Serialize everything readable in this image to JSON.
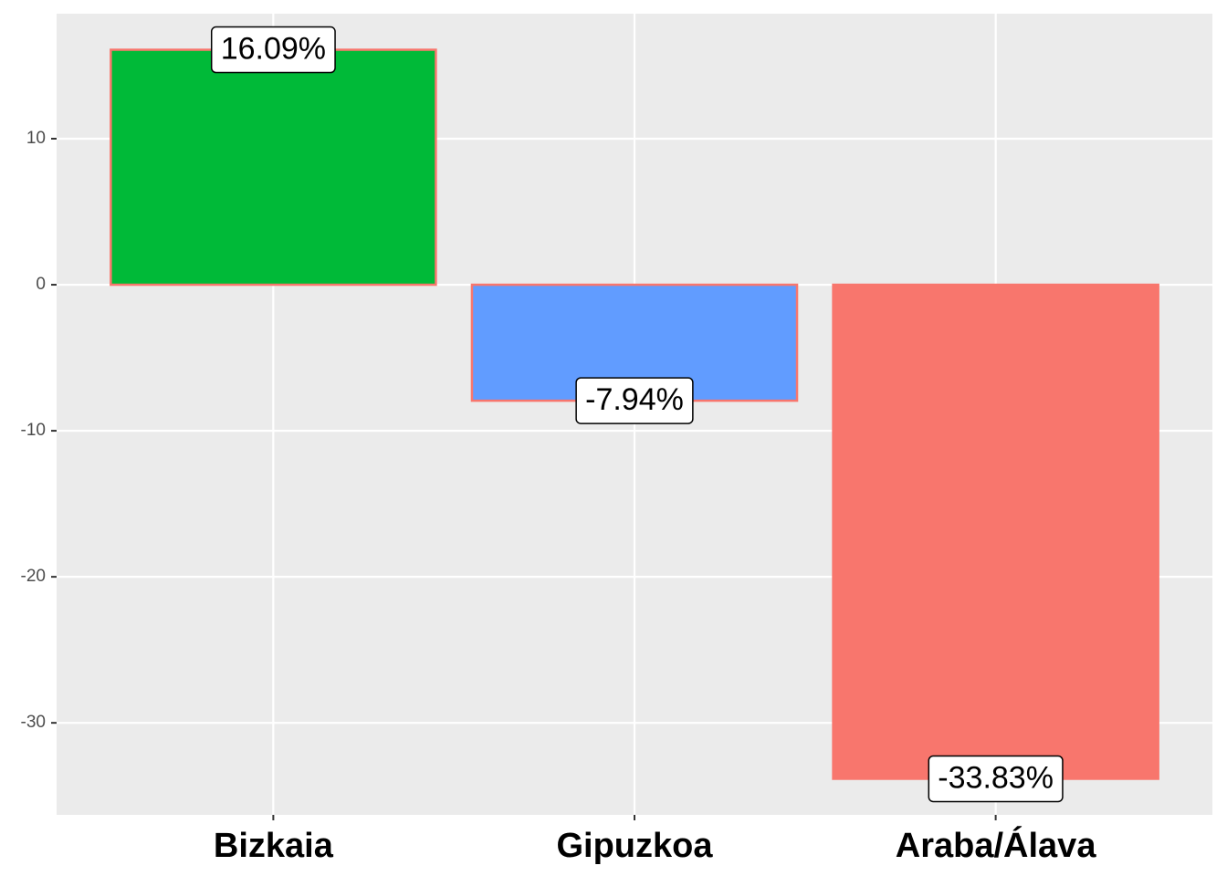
{
  "chart_data": {
    "type": "bar",
    "categories": [
      "Bizkaia",
      "Gipuzkoa",
      "Araba/Álava"
    ],
    "values": [
      16.09,
      -7.94,
      -33.83
    ],
    "value_labels": [
      "16.09%",
      "-7.94%",
      "-33.83%"
    ],
    "colors": [
      "#00BA38",
      "#619CFF",
      "#F8766D"
    ],
    "outline": "#F8766D",
    "ylim": [
      -36.3,
      18.56
    ],
    "yticks": [
      -30,
      -20,
      -10,
      0,
      10
    ],
    "grid": true
  }
}
